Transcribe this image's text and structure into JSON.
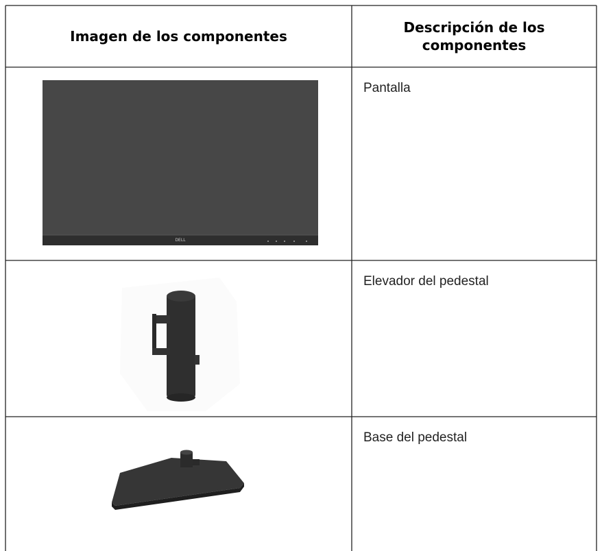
{
  "table": {
    "headers": [
      "Imagen de los componentes",
      "Descripción de los componentes"
    ],
    "rows": [
      {
        "description": "Pantalla"
      },
      {
        "description": "Elevador del pedestal"
      },
      {
        "description": "Base del pedestal"
      }
    ]
  },
  "monitor_logo": "DELL"
}
